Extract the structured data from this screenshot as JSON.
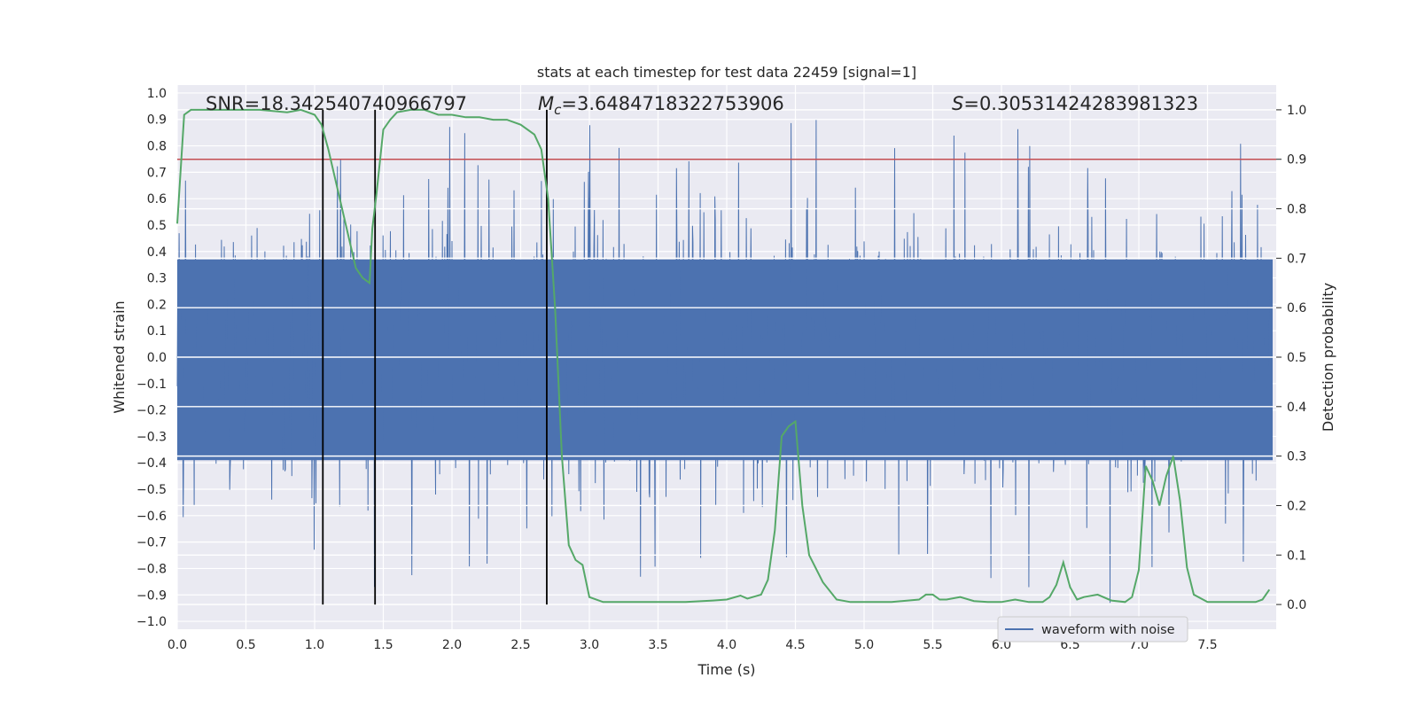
{
  "chart_data": {
    "type": "line",
    "title": "stats at each timestep for test data 22459 [signal=1]",
    "xlabel": "Time (s)",
    "ylabel_left": "Whitened strain",
    "ylabel_right": "Detection probability",
    "xlim": [
      0.0,
      8.0
    ],
    "ylim_left": [
      -1.03,
      1.03
    ],
    "ylim_right": [
      -0.05,
      1.05
    ],
    "x_ticks": [
      "0.0",
      "0.5",
      "1.0",
      "1.5",
      "2.0",
      "2.5",
      "3.0",
      "3.5",
      "4.0",
      "4.5",
      "5.0",
      "5.5",
      "6.0",
      "6.5",
      "7.0",
      "7.5"
    ],
    "y_ticks_left": [
      "1.0",
      "0.9",
      "0.8",
      "0.7",
      "0.6",
      "0.5",
      "0.4",
      "0.3",
      "0.2",
      "0.1",
      "0.0",
      "−0.1",
      "−0.2",
      "−0.3",
      "−0.4",
      "−0.5",
      "−0.6",
      "−0.7",
      "−0.8",
      "−0.9",
      "−1.0"
    ],
    "y_ticks_right": [
      "1.0",
      "0.9",
      "0.8",
      "0.7",
      "0.6",
      "0.5",
      "0.4",
      "0.3",
      "0.2",
      "0.1",
      "0.0"
    ],
    "annotations": {
      "snr": "SNR=18.342540740966797",
      "mc_symbol": "M",
      "mc_sub": "c",
      "mc_value": "=3.6484718322753906",
      "s_symbol": "S",
      "s_value": "=0.30531424283981323"
    },
    "threshold": {
      "value": 0.9,
      "color": "#c44e52"
    },
    "vertical_markers": [
      1.06,
      1.44,
      2.69
    ],
    "legend": [
      {
        "label": "waveform with noise",
        "color": "#4c72b0"
      }
    ],
    "series": [
      {
        "name": "waveform with noise",
        "color": "#4c72b0",
        "style": "dense noise strain, bulk within about ±0.4, peaks to ±1.0"
      },
      {
        "name": "detection probability",
        "color": "#55a868",
        "x": [
          0.0,
          0.05,
          0.1,
          0.2,
          0.4,
          0.6,
          0.8,
          0.9,
          1.0,
          1.05,
          1.1,
          1.2,
          1.3,
          1.35,
          1.4,
          1.42,
          1.45,
          1.5,
          1.55,
          1.6,
          1.7,
          1.8,
          1.9,
          2.0,
          2.1,
          2.2,
          2.3,
          2.4,
          2.5,
          2.6,
          2.65,
          2.7,
          2.75,
          2.8,
          2.85,
          2.9,
          2.95,
          3.0,
          3.1,
          3.3,
          3.5,
          3.7,
          3.9,
          4.0,
          4.1,
          4.15,
          4.25,
          4.3,
          4.35,
          4.4,
          4.45,
          4.5,
          4.55,
          4.6,
          4.7,
          4.8,
          4.9,
          5.0,
          5.2,
          5.4,
          5.45,
          5.5,
          5.55,
          5.6,
          5.7,
          5.8,
          5.9,
          6.0,
          6.1,
          6.2,
          6.3,
          6.35,
          6.4,
          6.45,
          6.5,
          6.55,
          6.6,
          6.7,
          6.8,
          6.9,
          6.95,
          7.0,
          7.05,
          7.1,
          7.15,
          7.2,
          7.25,
          7.3,
          7.35,
          7.4,
          7.5,
          7.7,
          7.8,
          7.85,
          7.9,
          7.95
        ],
        "values": [
          0.77,
          0.99,
          1.0,
          1.0,
          1.0,
          1.0,
          0.995,
          1.0,
          0.99,
          0.97,
          0.92,
          0.8,
          0.68,
          0.66,
          0.65,
          0.76,
          0.83,
          0.96,
          0.98,
          0.995,
          1.0,
          1.0,
          0.99,
          0.99,
          0.985,
          0.985,
          0.98,
          0.98,
          0.97,
          0.95,
          0.92,
          0.82,
          0.6,
          0.3,
          0.12,
          0.09,
          0.08,
          0.015,
          0.005,
          0.005,
          0.005,
          0.005,
          0.008,
          0.01,
          0.018,
          0.012,
          0.02,
          0.05,
          0.15,
          0.34,
          0.36,
          0.37,
          0.2,
          0.1,
          0.045,
          0.01,
          0.005,
          0.005,
          0.005,
          0.01,
          0.02,
          0.02,
          0.01,
          0.01,
          0.015,
          0.007,
          0.005,
          0.005,
          0.01,
          0.005,
          0.005,
          0.015,
          0.04,
          0.085,
          0.035,
          0.01,
          0.015,
          0.02,
          0.008,
          0.005,
          0.015,
          0.07,
          0.28,
          0.25,
          0.2,
          0.26,
          0.3,
          0.21,
          0.075,
          0.02,
          0.005,
          0.005,
          0.005,
          0.005,
          0.01,
          0.03
        ]
      }
    ]
  }
}
